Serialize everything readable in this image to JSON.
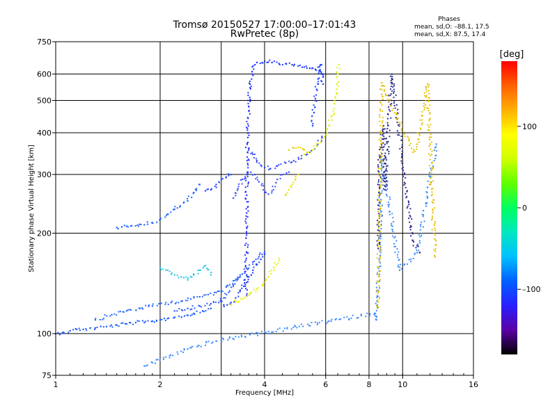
{
  "chart_data": {
    "type": "scatter",
    "title": "Tromsø 20150527 17:00:00–17:01:43",
    "subtitle": "RwPretec (8p)",
    "xlabel": "Frequency [MHz]",
    "ylabel": "Stationary phase Virtual Height [km]",
    "x_scale": "log2",
    "y_scale": "log",
    "xlim": [
      1,
      16
    ],
    "ylim": [
      75,
      750
    ],
    "x_ticks": [
      "1",
      "2",
      "4",
      "6",
      "8",
      "10",
      "16"
    ],
    "x_tick_values": [
      1,
      2,
      4,
      6,
      8,
      10,
      16
    ],
    "x_grid_values": [
      1,
      2,
      3,
      4,
      6,
      8,
      10,
      16
    ],
    "y_ticks": [
      "75",
      "100",
      "200",
      "300",
      "400",
      "500",
      "600",
      "750"
    ],
    "y_tick_values": [
      75,
      100,
      200,
      300,
      400,
      500,
      600,
      750
    ],
    "grid": true,
    "phase_info": {
      "header": "Phases",
      "o_line": "mean, sd,O: –88.1, 17.5",
      "x_line": "mean, sd,X: 87.5, 17.4"
    },
    "colorbar": {
      "unit": "[deg]",
      "range": [
        -180,
        180
      ],
      "ticks": [
        "100",
        "0",
        "–100"
      ],
      "tick_values": [
        100,
        0,
        -100
      ],
      "colors": [
        "#000000",
        "#5b00a5",
        "#2a1fff",
        "#0060ff",
        "#00c0ff",
        "#00e8c0",
        "#00ff60",
        "#60ff00",
        "#d0ff00",
        "#ffff00",
        "#ffb000",
        "#ff6000",
        "#ff0000"
      ]
    },
    "series": [
      {
        "color": "#1a5bff",
        "x": [
          1.0,
          1.05,
          1.1,
          1.15,
          1.2,
          1.3,
          1.4,
          1.5,
          1.6,
          1.7,
          1.8,
          1.9,
          2.0,
          2.1,
          2.2,
          2.35,
          2.5,
          2.65,
          2.8
        ],
        "y": [
          100,
          101,
          102,
          103,
          103,
          104,
          105,
          106,
          107,
          108,
          108,
          109,
          110,
          111,
          112,
          113,
          115,
          117,
          119
        ]
      },
      {
        "color": "#2a6aff",
        "x": [
          1.3,
          1.45,
          1.6,
          1.75,
          1.9,
          2.0,
          2.15,
          2.3,
          2.45,
          2.6,
          2.75,
          2.9,
          3.0,
          3.1,
          3.25,
          3.4
        ],
        "y": [
          110,
          114,
          117,
          119,
          121,
          123,
          124,
          125,
          127,
          129,
          131,
          133,
          134,
          138,
          144,
          150
        ]
      },
      {
        "color": "#2f5cff",
        "x": [
          2.2,
          2.4,
          2.6,
          2.8,
          2.95,
          3.05,
          3.15,
          3.25,
          3.35,
          3.45,
          3.55,
          3.7,
          3.85,
          4.0
        ],
        "y": [
          117,
          119,
          121,
          123,
          124,
          128,
          133,
          140,
          146,
          151,
          157,
          164,
          170,
          176
        ]
      },
      {
        "color": "#2040ff",
        "x": [
          3.0,
          3.05,
          3.12,
          3.2,
          3.3,
          3.4,
          3.5,
          3.6,
          3.7,
          3.8,
          3.9,
          4.0
        ],
        "y": [
          125,
          122,
          122,
          124,
          128,
          135,
          142,
          148,
          155,
          161,
          167,
          173
        ]
      },
      {
        "color": "#1d2dff",
        "x": [
          3.55,
          3.55,
          3.55,
          3.55,
          3.55,
          3.55,
          3.56,
          3.57,
          3.58,
          3.6,
          3.63,
          3.68,
          3.75
        ],
        "y": [
          130,
          150,
          175,
          200,
          230,
          260,
          300,
          350,
          400,
          480,
          560,
          610,
          640
        ]
      },
      {
        "color": "#3550ff",
        "x": [
          3.25,
          3.35,
          3.45,
          3.55,
          3.65,
          3.75,
          3.85,
          4.0,
          4.1,
          4.2,
          4.35,
          4.5,
          4.7
        ],
        "y": [
          255,
          272,
          290,
          300,
          305,
          300,
          285,
          265,
          262,
          268,
          290,
          300,
          305
        ]
      },
      {
        "color": "#2f48ff",
        "x": [
          3.6,
          3.7,
          3.8,
          3.9,
          4.0,
          4.15,
          4.35,
          4.6,
          4.85,
          5.1,
          5.3,
          5.5,
          5.7,
          5.85
        ],
        "y": [
          360,
          345,
          330,
          320,
          315,
          312,
          318,
          325,
          330,
          335,
          345,
          355,
          370,
          390
        ]
      },
      {
        "color": "#1a35ff",
        "x": [
          3.8,
          4.0,
          4.2,
          4.4,
          4.6,
          4.8,
          5.0,
          5.2,
          5.4,
          5.6,
          5.8,
          5.9
        ],
        "y": [
          650,
          655,
          650,
          645,
          645,
          640,
          635,
          630,
          625,
          620,
          610,
          600
        ]
      },
      {
        "color": "#1c40ff",
        "x": [
          5.5,
          5.55,
          5.6,
          5.65,
          5.7,
          5.75,
          5.8,
          5.85,
          5.9
        ],
        "y": [
          420,
          460,
          500,
          540,
          580,
          615,
          640,
          600,
          560
        ]
      },
      {
        "color": "#e8f000",
        "x": [
          3.2,
          3.35,
          3.5,
          3.65,
          3.8,
          3.95,
          4.1,
          4.25,
          4.4
        ],
        "y": [
          122,
          125,
          128,
          132,
          136,
          140,
          148,
          158,
          168
        ]
      },
      {
        "color": "#f0e000",
        "x": [
          4.6,
          4.7,
          4.8,
          4.9,
          5.0
        ],
        "y": [
          260,
          270,
          280,
          290,
          300
        ]
      },
      {
        "color": "#e0f020",
        "x": [
          5.2,
          5.35,
          5.5,
          5.65,
          5.8,
          5.95,
          6.05,
          6.15,
          6.25,
          6.35,
          6.45,
          6.5,
          6.55
        ],
        "y": [
          345,
          350,
          355,
          365,
          375,
          390,
          400,
          420,
          450,
          490,
          540,
          600,
          640
        ]
      },
      {
        "color": "#e8d000",
        "x": [
          4.7,
          4.85,
          5.0,
          5.15,
          5.3
        ],
        "y": [
          355,
          360,
          362,
          358,
          350
        ]
      },
      {
        "color": "#20c8e8",
        "x": [
          2.0,
          2.1,
          2.2,
          2.3,
          2.4,
          2.5,
          2.6,
          2.7,
          2.8
        ],
        "y": [
          158,
          155,
          150,
          148,
          145,
          150,
          155,
          160,
          150
        ]
      },
      {
        "color": "#1b60ff",
        "x": [
          1.5,
          1.55,
          1.6,
          1.8,
          1.9,
          2.0,
          2.1,
          2.2,
          2.4,
          2.5,
          2.6
        ],
        "y": [
          208,
          209,
          210,
          212,
          215,
          220,
          228,
          236,
          250,
          265,
          280
        ]
      },
      {
        "color": "#2c4cff",
        "x": [
          2.7,
          2.8,
          2.9,
          3.0,
          3.1,
          3.2
        ],
        "y": [
          268,
          270,
          280,
          290,
          295,
          300
        ]
      },
      {
        "color": "#3a8cff",
        "x": [
          1.8,
          2.4,
          2.9,
          8.3,
          8.4,
          8.6,
          8.7,
          9.8,
          11.0,
          12.5
        ],
        "y": [
          80,
          90,
          95,
          115,
          110,
          185,
          340,
          155,
          175,
          370
        ]
      },
      {
        "color": "#2d2d90",
        "x": [
          8.5,
          8.6,
          8.8,
          8.9,
          9.3,
          10.7,
          11.2
        ],
        "y": [
          180,
          340,
          420,
          270,
          600,
          190,
          175
        ]
      },
      {
        "color": "#e8c000",
        "x": [
          8.5,
          8.7,
          10.7,
          11.0,
          11.8,
          12.0,
          12.4
        ],
        "y": [
          120,
          565,
          350,
          370,
          560,
          370,
          170
        ]
      }
    ]
  }
}
